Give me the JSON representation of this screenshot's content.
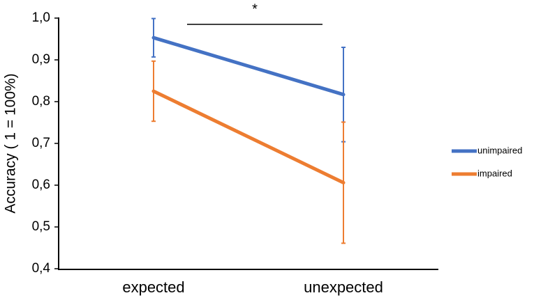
{
  "chart_data": {
    "type": "line",
    "y_label": "Accuracy ( 1 = 100%)",
    "annotation": "*",
    "categories": [
      "expected",
      "unexpected"
    ],
    "series": [
      {
        "name": "unimpaired",
        "color": "#4472c4",
        "values": [
          0.953,
          0.817
        ],
        "errors": [
          0.046,
          0.113
        ]
      },
      {
        "name": "impaired",
        "color": "#ed7d31",
        "values": [
          0.825,
          0.606
        ],
        "errors": [
          0.072,
          0.145
        ]
      }
    ],
    "ylim": [
      0.4,
      1.0
    ],
    "yticks": [
      {
        "value": 0.4,
        "label": "0,4"
      },
      {
        "value": 0.5,
        "label": "0,5"
      },
      {
        "value": 0.6,
        "label": "0,6"
      },
      {
        "value": 0.7,
        "label": "0,7"
      },
      {
        "value": 0.8,
        "label": "0,8"
      },
      {
        "value": 0.9,
        "label": "0,9"
      },
      {
        "value": 1.0,
        "label": "1,0"
      }
    ],
    "legend": "right"
  }
}
